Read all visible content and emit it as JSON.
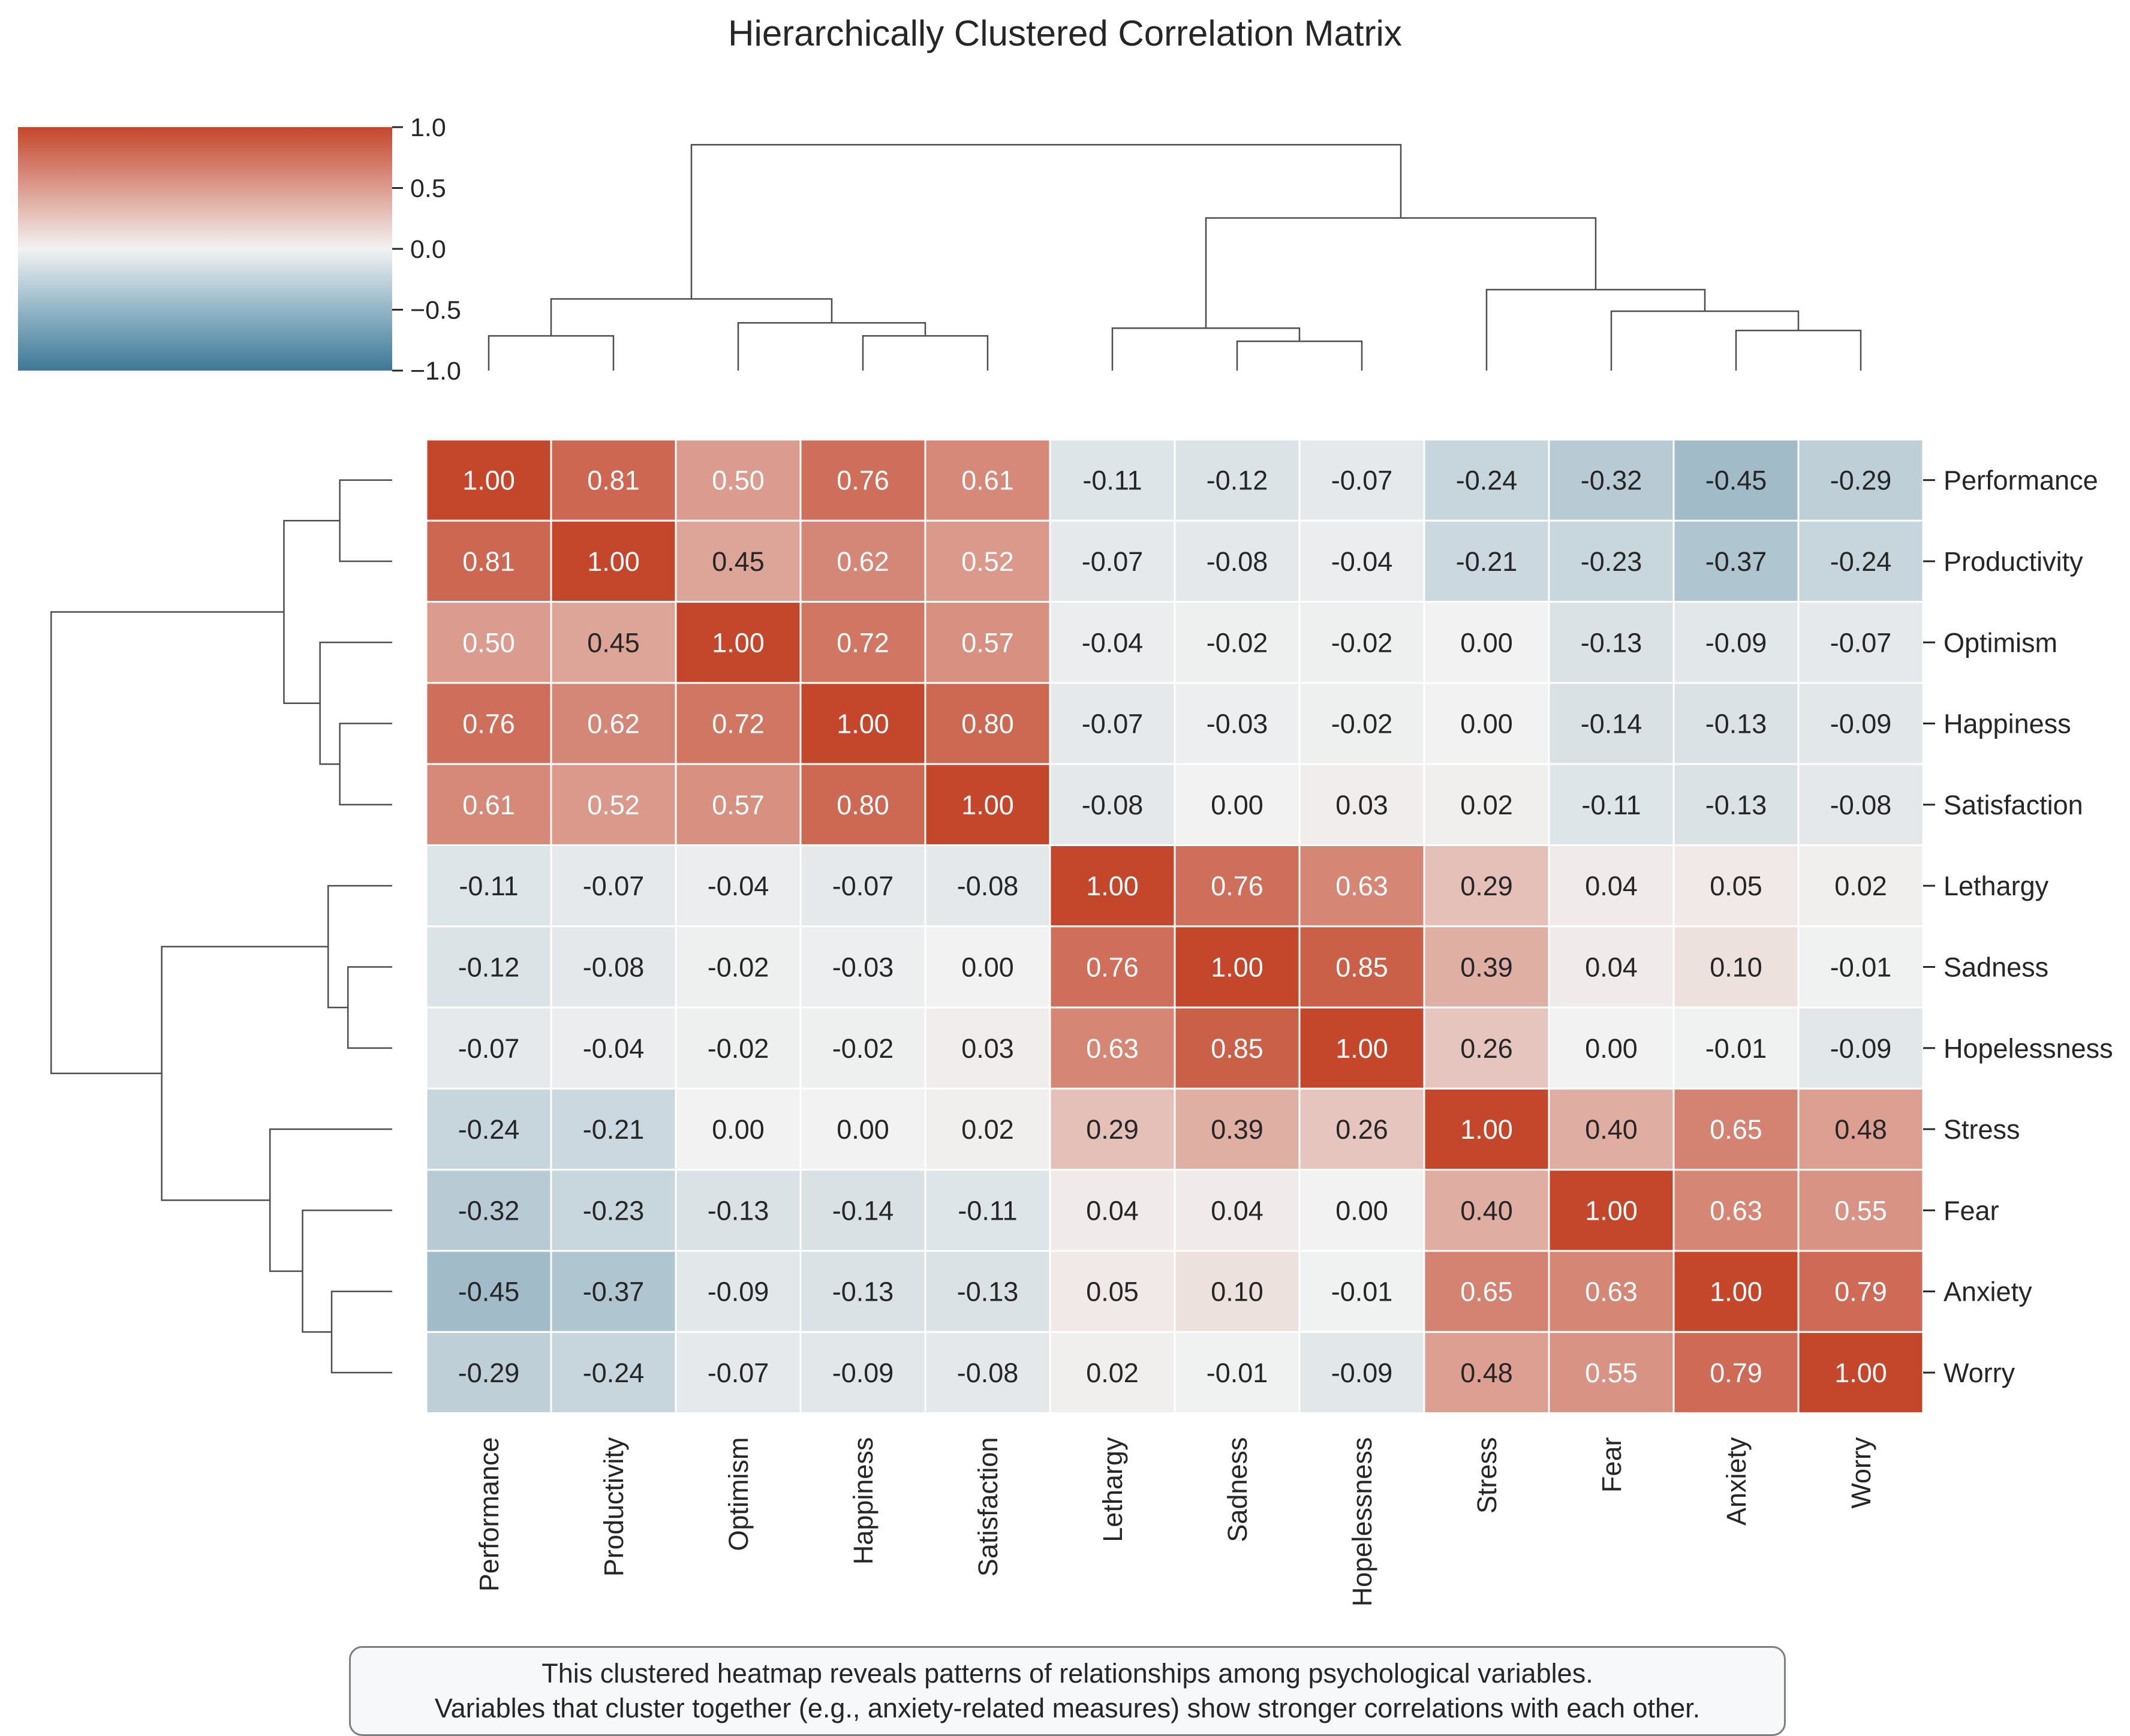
{
  "chart_data": {
    "type": "heatmap",
    "title": "Hierarchically Clustered Correlation Matrix",
    "variables": [
      "Performance",
      "Productivity",
      "Optimism",
      "Happiness",
      "Satisfaction",
      "Lethargy",
      "Sadness",
      "Hopelessness",
      "Stress",
      "Fear",
      "Anxiety",
      "Worry"
    ],
    "matrix": [
      [
        1.0,
        0.81,
        0.5,
        0.76,
        0.61,
        -0.11,
        -0.12,
        -0.07,
        -0.24,
        -0.32,
        -0.45,
        -0.29
      ],
      [
        0.81,
        1.0,
        0.45,
        0.62,
        0.52,
        -0.07,
        -0.08,
        -0.04,
        -0.21,
        -0.23,
        -0.37,
        -0.24
      ],
      [
        0.5,
        0.45,
        1.0,
        0.72,
        0.57,
        -0.04,
        -0.02,
        -0.02,
        -0.0,
        -0.13,
        -0.09,
        -0.07
      ],
      [
        0.76,
        0.62,
        0.72,
        1.0,
        0.8,
        -0.07,
        -0.03,
        -0.02,
        -0.0,
        -0.14,
        -0.13,
        -0.09
      ],
      [
        0.61,
        0.52,
        0.57,
        0.8,
        1.0,
        -0.08,
        -0.0,
        0.03,
        0.02,
        -0.11,
        -0.13,
        -0.08
      ],
      [
        -0.11,
        -0.07,
        -0.04,
        -0.07,
        -0.08,
        1.0,
        0.76,
        0.63,
        0.29,
        0.04,
        0.05,
        0.02
      ],
      [
        -0.12,
        -0.08,
        -0.02,
        -0.03,
        -0.0,
        0.76,
        1.0,
        0.85,
        0.39,
        0.04,
        0.1,
        -0.01
      ],
      [
        -0.07,
        -0.04,
        -0.02,
        -0.02,
        0.03,
        0.63,
        0.85,
        1.0,
        0.26,
        -0.0,
        -0.01,
        -0.09
      ],
      [
        -0.24,
        -0.21,
        -0.0,
        -0.0,
        0.02,
        0.29,
        0.39,
        0.26,
        1.0,
        0.4,
        0.65,
        0.48
      ],
      [
        -0.32,
        -0.23,
        -0.13,
        -0.14,
        -0.11,
        0.04,
        0.04,
        -0.0,
        0.4,
        1.0,
        0.63,
        0.55
      ],
      [
        -0.45,
        -0.37,
        -0.09,
        -0.13,
        -0.13,
        0.05,
        0.1,
        -0.01,
        0.65,
        0.63,
        1.0,
        0.79
      ],
      [
        -0.29,
        -0.24,
        -0.07,
        -0.09,
        -0.08,
        0.02,
        -0.01,
        -0.09,
        0.48,
        0.55,
        0.79,
        1.0
      ]
    ],
    "colorbar": {
      "ticks": [
        "1.0",
        "0.5",
        "0.0",
        "−0.5",
        "−1.0"
      ],
      "range": [
        -1,
        1
      ]
    },
    "colormap": {
      "negative": "#3d7896",
      "neutral": "#f2f2f2",
      "positive": "#c4462b"
    },
    "dendrogram": [
      [
        0,
        1,
        0.45
      ],
      [
        3,
        4,
        0.45
      ],
      [
        2,
        13,
        0.62
      ],
      [
        12,
        14,
        0.93
      ],
      [
        6,
        7,
        0.38
      ],
      [
        5,
        16,
        0.55
      ],
      [
        10,
        11,
        0.52
      ],
      [
        9,
        18,
        0.77
      ],
      [
        8,
        19,
        1.05
      ],
      [
        17,
        20,
        1.98
      ],
      [
        15,
        21,
        2.93
      ]
    ],
    "cluster_max_distance": 3.05
  },
  "caption": {
    "line1": "This clustered heatmap reveals patterns of relationships among psychological variables.",
    "line2": "Variables that cluster together (e.g., anxiety-related measures) show stronger correlations with each other."
  }
}
